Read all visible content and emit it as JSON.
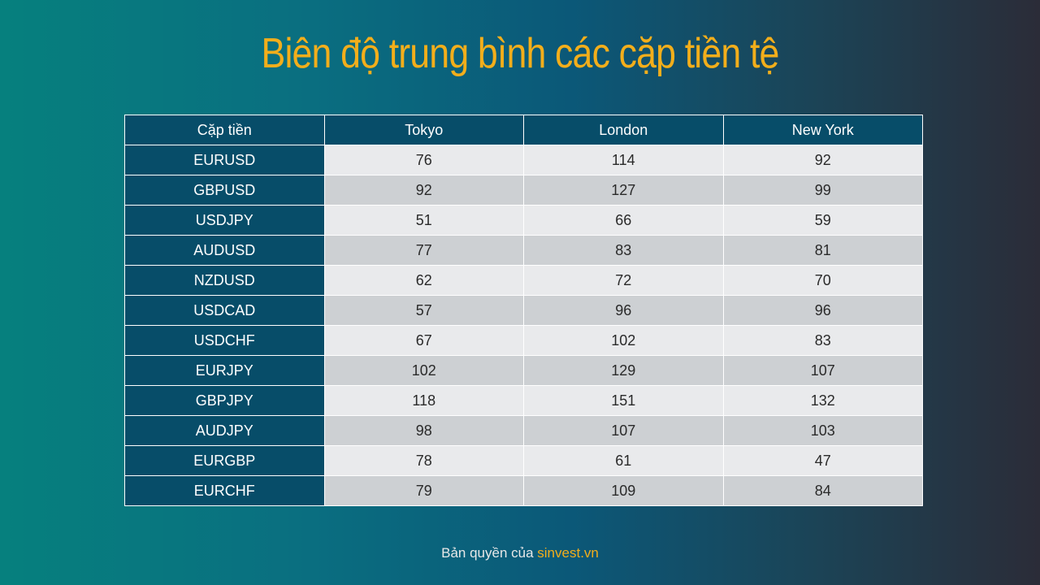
{
  "title": "Biên độ trung bình các cặp tiền tệ",
  "table": {
    "headers": [
      "Cặp tiền",
      "Tokyo",
      "London",
      "New York"
    ],
    "rows": [
      {
        "pair": "EURUSD",
        "tokyo": "76",
        "london": "114",
        "newyork": "92"
      },
      {
        "pair": "GBPUSD",
        "tokyo": "92",
        "london": "127",
        "newyork": "99"
      },
      {
        "pair": "USDJPY",
        "tokyo": "51",
        "london": "66",
        "newyork": "59"
      },
      {
        "pair": "AUDUSD",
        "tokyo": "77",
        "london": "83",
        "newyork": "81"
      },
      {
        "pair": "NZDUSD",
        "tokyo": "62",
        "london": "72",
        "newyork": "70"
      },
      {
        "pair": "USDCAD",
        "tokyo": "57",
        "london": "96",
        "newyork": "96"
      },
      {
        "pair": "USDCHF",
        "tokyo": "67",
        "london": "102",
        "newyork": "83"
      },
      {
        "pair": "EURJPY",
        "tokyo": "102",
        "london": "129",
        "newyork": "107"
      },
      {
        "pair": "GBPJPY",
        "tokyo": "118",
        "london": "151",
        "newyork": "132"
      },
      {
        "pair": "AUDJPY",
        "tokyo": "98",
        "london": "107",
        "newyork": "103"
      },
      {
        "pair": "EURGBP",
        "tokyo": "78",
        "london": "61",
        "newyork": "47"
      },
      {
        "pair": "EURCHF",
        "tokyo": "79",
        "london": "109",
        "newyork": "84"
      }
    ]
  },
  "footer": {
    "prefix": "Bản quyền của",
    "brand": "sinvest.vn"
  },
  "colors": {
    "title": "#f3ae1b",
    "header_bg": "#074d69",
    "row_light": "#e9eaec",
    "row_dark": "#cdd0d3"
  }
}
